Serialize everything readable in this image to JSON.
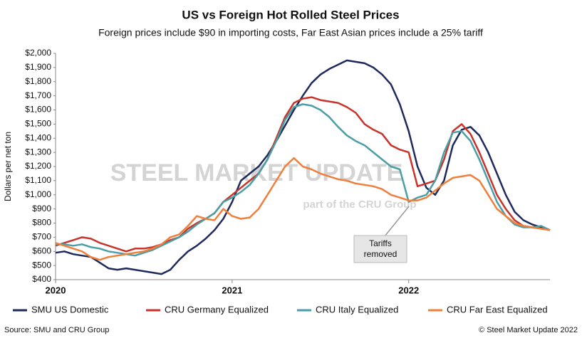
{
  "chart_data": {
    "type": "line",
    "title": "US vs Foreign Hot Rolled Steel Prices",
    "subtitle": "Foreign prices include $90 in importing costs, Far East Asian prices include a 25% tariff",
    "ylabel": "Dollars per net ton",
    "source": "Source: SMU and CRU Group",
    "credit": "© Steel Market Update 2022",
    "watermark": [
      "STEEL MARKET UPDATE",
      "part of the CRU Group"
    ],
    "annotation": [
      "Tariffs",
      "removed"
    ],
    "x": [
      2020,
      2020.05,
      2020.1,
      2020.15,
      2020.2,
      2020.25,
      2020.3,
      2020.35,
      2020.4,
      2020.45,
      2020.5,
      2020.55,
      2020.6,
      2020.65,
      2020.7,
      2020.75,
      2020.8,
      2020.85,
      2020.9,
      2020.95,
      2021,
      2021.05,
      2021.1,
      2021.15,
      2021.2,
      2021.25,
      2021.3,
      2021.35,
      2021.4,
      2021.45,
      2021.5,
      2021.55,
      2021.6,
      2021.65,
      2021.7,
      2021.75,
      2021.8,
      2021.85,
      2021.9,
      2021.95,
      2022,
      2022.05,
      2022.1,
      2022.15,
      2022.2,
      2022.25,
      2022.3,
      2022.35,
      2022.4,
      2022.45,
      2022.5,
      2022.55,
      2022.6,
      2022.65,
      2022.7,
      2022.75,
      2022.8
    ],
    "xlim": [
      2020,
      2022.8
    ],
    "xticks": [
      2020,
      2021,
      2022
    ],
    "ylim": [
      400,
      2000
    ],
    "yticks": [
      {
        "value": 400,
        "label": "$400"
      },
      {
        "value": 500,
        "label": "$500"
      },
      {
        "value": 600,
        "label": "$600"
      },
      {
        "value": 700,
        "label": "$700"
      },
      {
        "value": 800,
        "label": "$800"
      },
      {
        "value": 900,
        "label": "$900"
      },
      {
        "value": 1000,
        "label": "$1,000"
      },
      {
        "value": 1100,
        "label": "$1,100"
      },
      {
        "value": 1200,
        "label": "$1,200"
      },
      {
        "value": 1300,
        "label": "$1,300"
      },
      {
        "value": 1400,
        "label": "$1,400"
      },
      {
        "value": 1500,
        "label": "$1,500"
      },
      {
        "value": 1600,
        "label": "$1,600"
      },
      {
        "value": 1700,
        "label": "$1,700"
      },
      {
        "value": 1800,
        "label": "$1,800"
      },
      {
        "value": 1900,
        "label": "$1,900"
      },
      {
        "value": 2000,
        "label": "$2,000"
      }
    ],
    "grid": false,
    "legend": "bottom",
    "series": [
      {
        "name": "SMU US Domestic",
        "color": "#1f2a5c",
        "values": [
          590,
          600,
          580,
          570,
          560,
          520,
          480,
          470,
          480,
          470,
          460,
          450,
          440,
          470,
          540,
          600,
          640,
          690,
          750,
          830,
          950,
          1100,
          1150,
          1200,
          1280,
          1380,
          1490,
          1600,
          1700,
          1790,
          1850,
          1890,
          1920,
          1950,
          1940,
          1930,
          1900,
          1850,
          1780,
          1640,
          1450,
          1200,
          1050,
          1000,
          1100,
          1350,
          1460,
          1480,
          1420,
          1300,
          1150,
          1000,
          880,
          820,
          790,
          770,
          750
        ]
      },
      {
        "name": "CRU Germany Equalized",
        "color": "#c8332a",
        "values": [
          640,
          660,
          680,
          700,
          690,
          660,
          640,
          620,
          600,
          620,
          620,
          630,
          650,
          680,
          700,
          760,
          800,
          830,
          870,
          950,
          1000,
          1050,
          1100,
          1150,
          1250,
          1400,
          1550,
          1650,
          1680,
          1690,
          1670,
          1660,
          1650,
          1620,
          1580,
          1500,
          1460,
          1430,
          1350,
          1320,
          1300,
          1060,
          1080,
          1100,
          1250,
          1450,
          1500,
          1430,
          1300,
          1150,
          1000,
          900,
          820,
          780,
          770,
          760,
          750
        ]
      },
      {
        "name": "CRU Italy Equalized",
        "color": "#4a9ea6",
        "values": [
          650,
          650,
          640,
          650,
          630,
          620,
          600,
          590,
          580,
          570,
          590,
          610,
          640,
          670,
          700,
          740,
          790,
          830,
          870,
          950,
          980,
          1020,
          1070,
          1150,
          1250,
          1380,
          1530,
          1620,
          1640,
          1630,
          1600,
          1550,
          1480,
          1420,
          1380,
          1350,
          1300,
          1250,
          1200,
          1180,
          950,
          980,
          1000,
          1100,
          1300,
          1440,
          1450,
          1380,
          1250,
          1100,
          950,
          850,
          790,
          770,
          770,
          780,
          750
        ]
      },
      {
        "name": "CRU Far East Equalized",
        "color": "#f07f3c",
        "values": [
          660,
          640,
          620,
          600,
          560,
          540,
          560,
          570,
          580,
          590,
          600,
          620,
          650,
          700,
          720,
          780,
          850,
          830,
          820,
          900,
          850,
          830,
          840,
          900,
          1000,
          1100,
          1200,
          1260,
          1200,
          1180,
          1150,
          1130,
          1110,
          1100,
          1080,
          1070,
          1060,
          1040,
          1000,
          980,
          960,
          960,
          980,
          1030,
          1080,
          1120,
          1130,
          1140,
          1100,
          1000,
          900,
          850,
          800,
          780,
          770,
          760,
          750
        ]
      }
    ]
  }
}
